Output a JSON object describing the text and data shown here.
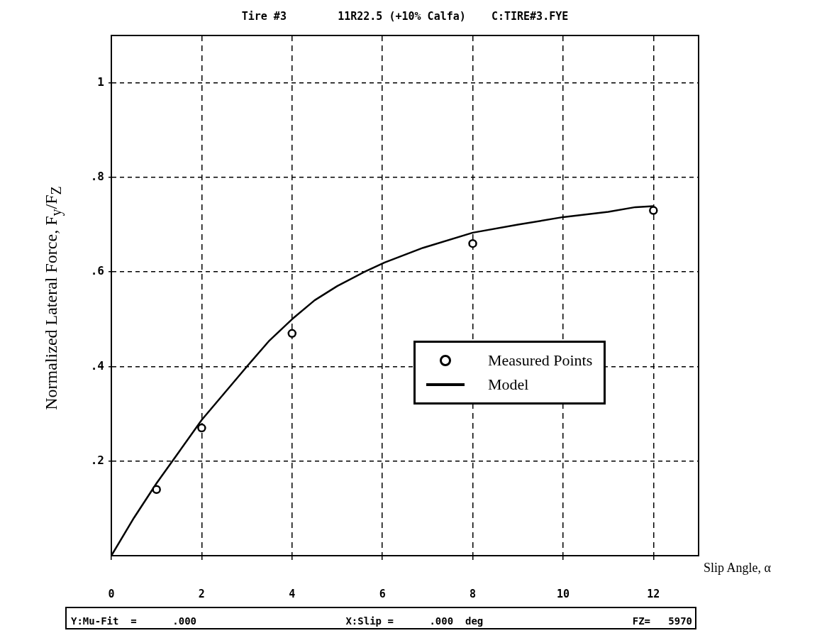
{
  "chart_data": {
    "type": "line",
    "title": "Tire #3        11R22.5 (+10% Calfa)    C:TIRE#3.FYE",
    "xlabel": "Slip Angle, α",
    "ylabel": "Normalized Lateral Force, F$_{y}$/F$_{Z}$",
    "xlim": [
      0,
      13
    ],
    "xticks": [
      0,
      2,
      4,
      6,
      8,
      10,
      12
    ],
    "ylim": [
      0,
      1.1
    ],
    "yticks": [
      {
        "value": 0.2,
        "label": ".2"
      },
      {
        "value": 0.4,
        "label": ".4"
      },
      {
        "value": 0.6,
        "label": ".6"
      },
      {
        "value": 0.8,
        "label": ".8"
      },
      {
        "value": 1,
        "label": "1"
      }
    ],
    "grid": true,
    "legend": "right",
    "series": [
      {
        "name": "Measured Points",
        "type": "scatter",
        "color": "#000000",
        "marker": "circle",
        "x": [
          1,
          2,
          4,
          8,
          12
        ],
        "values": [
          0.14,
          0.27,
          0.47,
          0.66,
          0.73
        ]
      },
      {
        "name": "Model",
        "color": "#000000",
        "marker": "none",
        "line_style": "solid",
        "x": [
          0,
          0.5,
          1,
          1.5,
          2,
          3,
          3.5,
          4,
          4.5,
          5,
          5.6,
          6.05,
          6.9,
          8,
          9,
          10,
          11,
          11.6,
          12
        ],
        "values": [
          0,
          0.08,
          0.153,
          0.22,
          0.287,
          0.4,
          0.455,
          0.5,
          0.54,
          0.57,
          0.6,
          0.62,
          0.651,
          0.683,
          0.7,
          0.716,
          0.727,
          0.737,
          0.739
        ]
      }
    ],
    "annotations": [
      "Y:Mu-Fit  =      .000",
      "X:Slip =      .000  deg",
      "FZ=   5970"
    ]
  }
}
